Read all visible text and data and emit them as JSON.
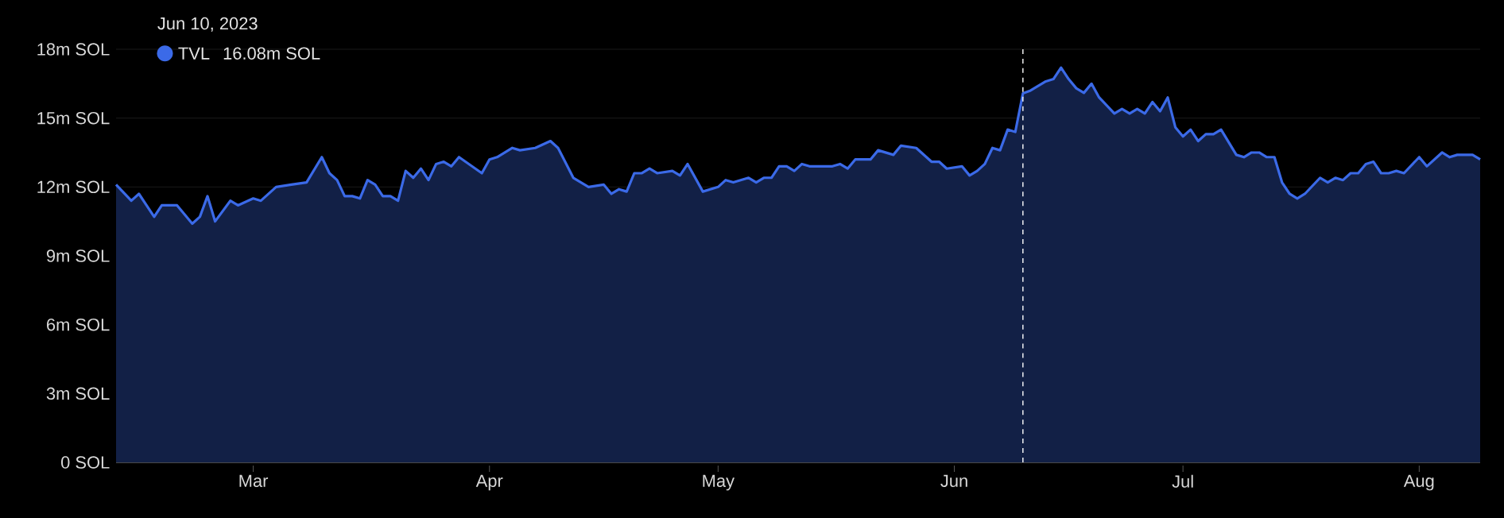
{
  "chart_data": {
    "type": "area",
    "x": [
      "2023-02-11",
      "2023-02-13",
      "2023-02-14",
      "2023-02-16",
      "2023-02-17",
      "2023-02-19",
      "2023-02-21",
      "2023-02-22",
      "2023-02-23",
      "2023-02-24",
      "2023-02-26",
      "2023-02-27",
      "2023-03-01",
      "2023-03-02",
      "2023-03-04",
      "2023-03-06",
      "2023-03-08",
      "2023-03-10",
      "2023-03-11",
      "2023-03-12",
      "2023-03-13",
      "2023-03-14",
      "2023-03-15",
      "2023-03-16",
      "2023-03-17",
      "2023-03-18",
      "2023-03-19",
      "2023-03-20",
      "2023-03-21",
      "2023-03-22",
      "2023-03-23",
      "2023-03-24",
      "2023-03-25",
      "2023-03-26",
      "2023-03-27",
      "2023-03-28",
      "2023-03-31",
      "2023-04-01",
      "2023-04-02",
      "2023-04-04",
      "2023-04-05",
      "2023-04-07",
      "2023-04-09",
      "2023-04-10",
      "2023-04-12",
      "2023-04-14",
      "2023-04-16",
      "2023-04-17",
      "2023-04-18",
      "2023-04-19",
      "2023-04-20",
      "2023-04-21",
      "2023-04-22",
      "2023-04-23",
      "2023-04-25",
      "2023-04-26",
      "2023-04-27",
      "2023-04-29",
      "2023-05-01",
      "2023-05-02",
      "2023-05-03",
      "2023-05-05",
      "2023-05-06",
      "2023-05-07",
      "2023-05-08",
      "2023-05-09",
      "2023-05-10",
      "2023-05-11",
      "2023-05-12",
      "2023-05-13",
      "2023-05-16",
      "2023-05-17",
      "2023-05-18",
      "2023-05-19",
      "2023-05-21",
      "2023-05-22",
      "2023-05-24",
      "2023-05-25",
      "2023-05-27",
      "2023-05-29",
      "2023-05-30",
      "2023-05-31",
      "2023-06-02",
      "2023-06-03",
      "2023-06-04",
      "2023-06-05",
      "2023-06-06",
      "2023-06-07",
      "2023-06-08",
      "2023-06-09",
      "2023-06-10",
      "2023-06-11",
      "2023-06-13",
      "2023-06-14",
      "2023-06-15",
      "2023-06-16",
      "2023-06-17",
      "2023-06-18",
      "2023-06-19",
      "2023-06-20",
      "2023-06-22",
      "2023-06-23",
      "2023-06-24",
      "2023-06-25",
      "2023-06-26",
      "2023-06-27",
      "2023-06-28",
      "2023-06-29",
      "2023-06-30",
      "2023-07-01",
      "2023-07-02",
      "2023-07-03",
      "2023-07-04",
      "2023-07-05",
      "2023-07-06",
      "2023-07-08",
      "2023-07-09",
      "2023-07-10",
      "2023-07-11",
      "2023-07-12",
      "2023-07-13",
      "2023-07-14",
      "2023-07-15",
      "2023-07-16",
      "2023-07-17",
      "2023-07-19",
      "2023-07-20",
      "2023-07-21",
      "2023-07-22",
      "2023-07-23",
      "2023-07-24",
      "2023-07-25",
      "2023-07-26",
      "2023-07-27",
      "2023-07-28",
      "2023-07-29",
      "2023-07-30",
      "2023-08-01",
      "2023-08-02",
      "2023-08-04",
      "2023-08-05",
      "2023-08-06",
      "2023-08-08",
      "2023-08-09"
    ],
    "series": [
      {
        "name": "TVL",
        "color": "#3b6ae8",
        "values": [
          12.1,
          11.4,
          11.7,
          10.7,
          11.2,
          11.2,
          10.4,
          10.7,
          11.6,
          10.5,
          11.4,
          11.2,
          11.5,
          11.4,
          12.0,
          12.1,
          12.2,
          13.3,
          12.6,
          12.3,
          11.6,
          11.6,
          11.5,
          12.3,
          12.1,
          11.6,
          11.6,
          11.4,
          12.7,
          12.4,
          12.8,
          12.3,
          13.0,
          13.1,
          12.9,
          13.3,
          12.6,
          13.2,
          13.3,
          13.7,
          13.6,
          13.7,
          14.0,
          13.7,
          12.4,
          12.0,
          12.1,
          11.7,
          11.9,
          11.8,
          12.6,
          12.6,
          12.8,
          12.6,
          12.7,
          12.5,
          13.0,
          11.8,
          12.0,
          12.3,
          12.2,
          12.4,
          12.2,
          12.4,
          12.4,
          12.9,
          12.9,
          12.7,
          13.0,
          12.9,
          12.9,
          13.0,
          12.8,
          13.2,
          13.2,
          13.6,
          13.4,
          13.8,
          13.7,
          13.1,
          13.1,
          12.8,
          12.9,
          12.5,
          12.7,
          13.0,
          13.7,
          13.6,
          14.5,
          14.4,
          16.08,
          16.2,
          16.6,
          16.7,
          17.2,
          16.7,
          16.3,
          16.1,
          16.5,
          15.9,
          15.2,
          15.4,
          15.2,
          15.4,
          15.2,
          15.7,
          15.3,
          15.9,
          14.6,
          14.2,
          14.5,
          14.0,
          14.3,
          14.3,
          14.5,
          13.4,
          13.3,
          13.5,
          13.5,
          13.3,
          13.3,
          12.2,
          11.7,
          11.5,
          11.7,
          12.4,
          12.2,
          12.4,
          12.3,
          12.6,
          12.6,
          13.0,
          13.1,
          12.6,
          12.6,
          12.7,
          12.6,
          13.3,
          12.9,
          13.5,
          13.3,
          13.4,
          13.4,
          13.2
        ]
      }
    ],
    "xlim": [
      "2023-02-11",
      "2023-08-09"
    ],
    "xticks": [
      {
        "value": "2023-03-01",
        "label": "Mar"
      },
      {
        "value": "2023-04-01",
        "label": "Apr"
      },
      {
        "value": "2023-05-01",
        "label": "May"
      },
      {
        "value": "2023-06-01",
        "label": "Jun"
      },
      {
        "value": "2023-07-01",
        "label": "Jul"
      },
      {
        "value": "2023-08-01",
        "label": "Aug"
      }
    ],
    "ylim": [
      0,
      18
    ],
    "yticks": [
      {
        "value": 0,
        "label": "0 SOL"
      },
      {
        "value": 3,
        "label": "3m SOL"
      },
      {
        "value": 6,
        "label": "6m SOL"
      },
      {
        "value": 9,
        "label": "9m SOL"
      },
      {
        "value": 12,
        "label": "12m SOL"
      },
      {
        "value": 15,
        "label": "15m SOL"
      },
      {
        "value": 18,
        "label": "18m SOL"
      }
    ],
    "grid": "y",
    "legend": "top left",
    "ref_lines": [
      {
        "axis": "x",
        "value": "2023-06-10",
        "label": "Jun 10, 2023",
        "color": "#ffffff",
        "line_style": "dashed"
      }
    ],
    "annotations": [
      "16.08m SOL"
    ]
  }
}
